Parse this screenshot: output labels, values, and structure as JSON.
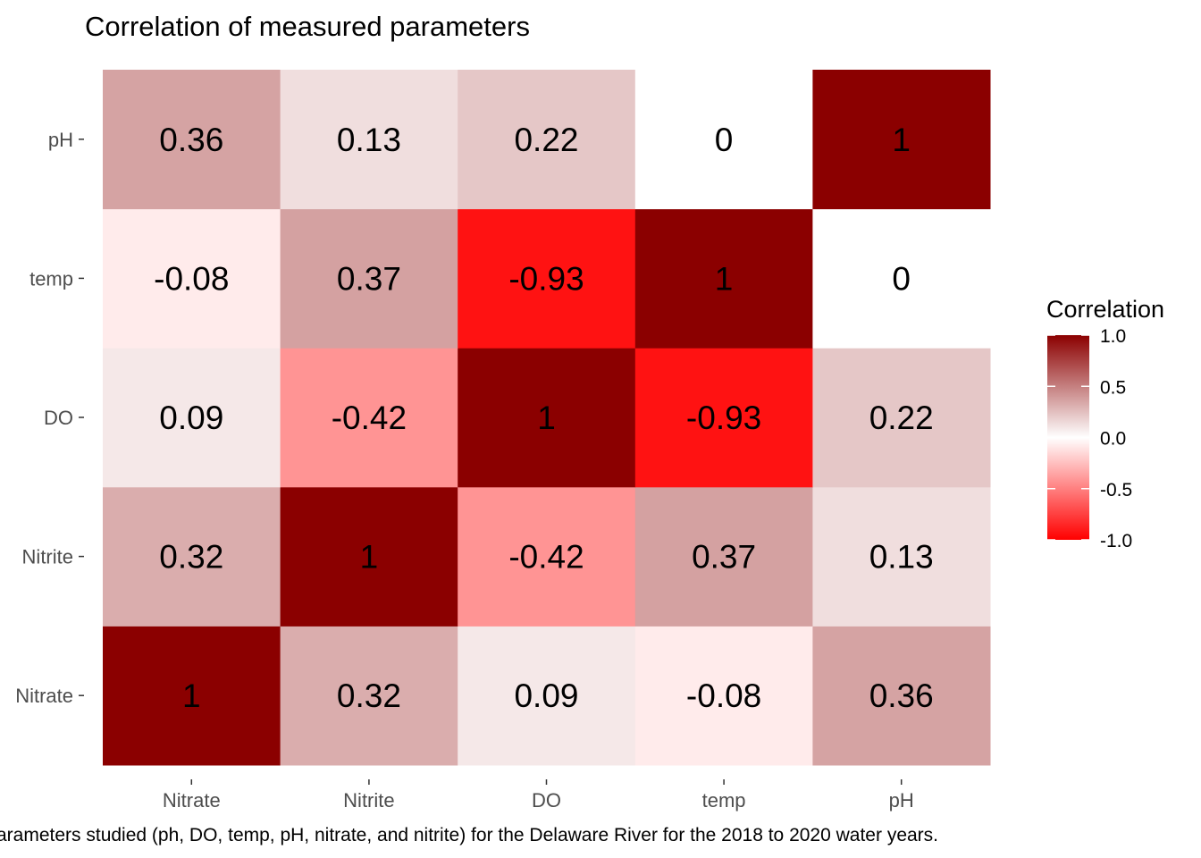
{
  "colors": {
    "low": "#ff0000",
    "mid": "#ffffff",
    "high": "#8b0000",
    "tick": "#333333",
    "text": "#000000"
  },
  "chart_data": {
    "type": "heatmap",
    "title": "Correlation of measured parameters",
    "caption": "arameters studied (ph, DO, temp, pH, nitrate, and nitrite) for the Delaware River for the 2018 to 2020 water years.",
    "x_categories": [
      "Nitrate",
      "Nitrite",
      "DO",
      "temp",
      "pH"
    ],
    "y_categories": [
      "Nitrate",
      "Nitrite",
      "DO",
      "temp",
      "pH"
    ],
    "matrix": [
      [
        1,
        0.32,
        0.09,
        -0.08,
        0.36
      ],
      [
        0.32,
        1,
        -0.42,
        0.37,
        0.13
      ],
      [
        0.09,
        -0.42,
        1,
        -0.93,
        0.22
      ],
      [
        -0.08,
        0.37,
        -0.93,
        1,
        0
      ],
      [
        0.36,
        0.13,
        0.22,
        0,
        1
      ]
    ],
    "legend": {
      "title": "Correlation",
      "position": "right",
      "limits": [
        -1,
        1
      ],
      "ticks": [
        "1.0",
        "0.5",
        "0.0",
        "-0.5",
        "-1.0"
      ]
    },
    "grid": false
  }
}
